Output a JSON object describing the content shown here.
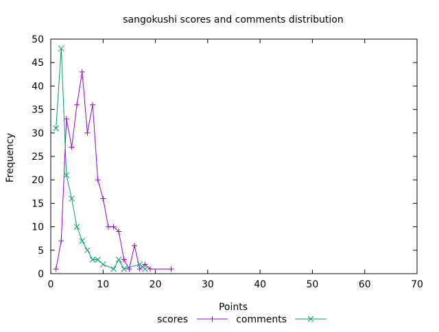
{
  "chart_data": {
    "type": "line",
    "title": "sangokushi scores and comments distribution",
    "xlabel": "Points",
    "ylabel": "Frequency",
    "xlim": [
      0,
      70
    ],
    "ylim": [
      0,
      50
    ],
    "xticks": [
      0,
      10,
      20,
      30,
      40,
      50,
      60,
      70
    ],
    "yticks": [
      0,
      5,
      10,
      15,
      20,
      25,
      30,
      35,
      40,
      45,
      50
    ],
    "grid": false,
    "legend_position": "bottom-center",
    "series": [
      {
        "name": "scores",
        "color": "#9400d3",
        "marker": "plus",
        "points": [
          [
            1,
            1
          ],
          [
            2,
            7
          ],
          [
            3,
            33
          ],
          [
            4,
            27
          ],
          [
            5,
            36
          ],
          [
            6,
            43
          ],
          [
            7,
            30
          ],
          [
            8,
            36
          ],
          [
            9,
            20
          ],
          [
            10,
            16
          ],
          [
            11,
            10
          ],
          [
            12,
            10
          ],
          [
            13,
            9
          ],
          [
            14,
            3
          ],
          [
            15,
            1
          ],
          [
            16,
            6
          ],
          [
            17,
            1
          ],
          [
            18,
            2
          ],
          [
            19,
            1
          ],
          [
            23,
            1
          ]
        ]
      },
      {
        "name": "comments",
        "color": "#009e73",
        "marker": "cross",
        "points": [
          [
            1,
            31
          ],
          [
            2,
            48
          ],
          [
            3,
            21
          ],
          [
            4,
            16
          ],
          [
            5,
            10
          ],
          [
            6,
            7
          ],
          [
            7,
            5
          ],
          [
            8,
            3
          ],
          [
            9,
            3
          ],
          [
            10,
            2
          ],
          [
            12,
            1
          ],
          [
            13,
            3
          ],
          [
            14,
            1
          ],
          [
            17,
            2
          ],
          [
            18,
            1
          ]
        ]
      }
    ]
  }
}
